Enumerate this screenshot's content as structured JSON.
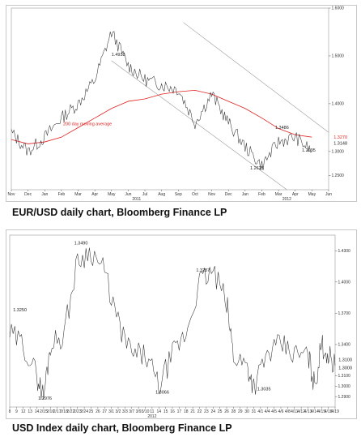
{
  "chart_data": [
    {
      "type": "line",
      "caption": "EUR/USD daily chart, Bloomberg Finance LP",
      "x_ticks": [
        "Nov",
        "Dec",
        "Jan",
        "Feb",
        "Mar",
        "Apr",
        "May",
        "Jun",
        "Jul",
        "Aug",
        "Sep",
        "Oct",
        "Nov",
        "Dec",
        "Jan",
        "Feb",
        "Mar",
        "Apr",
        "May",
        "Jun"
      ],
      "year_labels": [
        "2011",
        "2012"
      ],
      "y_ticks": [
        1.6,
        1.5,
        1.4,
        1.3,
        1.25
      ],
      "y_tick_labels": [
        "1.6000",
        "1.5000",
        "1.4000",
        "1.3000",
        "1.2500"
      ],
      "ylim": [
        1.22,
        1.6
      ],
      "series": [
        {
          "name": "200 day moving average",
          "color": "#e02020",
          "x": [
            0,
            1,
            2,
            3,
            4,
            5,
            6,
            7,
            8,
            9,
            10,
            11,
            12,
            13,
            14,
            15,
            16,
            17,
            18
          ],
          "values": [
            1.325,
            1.316,
            1.32,
            1.33,
            1.35,
            1.37,
            1.39,
            1.405,
            1.41,
            1.42,
            1.425,
            1.428,
            1.42,
            1.405,
            1.39,
            1.37,
            1.348,
            1.335,
            1.33
          ]
        },
        {
          "name": "",
          "color": "#333333",
          "x": [
            0,
            1,
            2,
            3,
            4,
            5,
            6,
            7,
            8,
            9,
            10,
            11,
            12,
            13,
            14,
            15,
            16,
            17,
            18
          ],
          "values": [
            1.34,
            1.3,
            1.33,
            1.37,
            1.4,
            1.45,
            1.55,
            1.48,
            1.45,
            1.44,
            1.43,
            1.36,
            1.42,
            1.36,
            1.31,
            1.27,
            1.32,
            1.33,
            1.3
          ]
        }
      ],
      "annotations": [
        {
          "text": "1.4938",
          "x": 6,
          "y": 1.5
        },
        {
          "text": "1.3486",
          "x": 15.8,
          "y": 1.347
        },
        {
          "text": "1.2625",
          "x": 14.3,
          "y": 1.262
        },
        {
          "text": "1.2995",
          "x": 17.4,
          "y": 1.3
        },
        {
          "text": "200 day moving average",
          "x": 3.1,
          "y": 1.355
        },
        {
          "text": "1.3270",
          "x": 19.3,
          "y": 1.327
        },
        {
          "text": "1.3148",
          "x": 19.3,
          "y": 1.314
        }
      ]
    },
    {
      "type": "line",
      "caption": "USD Index daily chart, Bloomberg Finance LP",
      "x_ticks": [
        "8",
        "9",
        "12",
        "13",
        "14",
        "2/15",
        "2/16",
        "2/17",
        "2/18",
        "2/22",
        "2/23",
        "2/24",
        "25",
        "26",
        "27",
        "3/1",
        "3/2",
        "3/3",
        "3/7",
        "3/9",
        "3/10",
        "11",
        "14",
        "15",
        "16",
        "17",
        "18",
        "21",
        "22",
        "23",
        "24",
        "25",
        "26",
        "28",
        "29",
        "30",
        "31",
        "4/1",
        "4/4",
        "4/5",
        "4/6",
        "4/8",
        "4/11",
        "4/12",
        "4/13",
        "4/14",
        "4/15",
        "4/18",
        "4/19"
      ],
      "year_labels": [
        "2012"
      ],
      "y_ticks": [
        1.43,
        1.4,
        1.37,
        1.34,
        1.31,
        1.3,
        1.29
      ],
      "y_tick_labels": [
        "1.4300",
        "1.4000",
        "1.3700",
        "1.3400",
        "1.3100",
        "1.3000",
        "1.2900"
      ],
      "ylim": [
        1.28,
        1.445
      ],
      "series": [
        {
          "name": "",
          "color": "#333333",
          "x": [
            0,
            2,
            4,
            5,
            6,
            8,
            10,
            12,
            14,
            16,
            18,
            20,
            22,
            24,
            26,
            28,
            30,
            32,
            33,
            35,
            36,
            38,
            40,
            42,
            44,
            45,
            46,
            47,
            48
          ],
          "values": [
            1.35,
            1.34,
            1.31,
            1.29,
            1.34,
            1.35,
            1.42,
            1.43,
            1.41,
            1.36,
            1.33,
            1.33,
            1.3,
            1.33,
            1.35,
            1.4,
            1.41,
            1.38,
            1.33,
            1.32,
            1.3,
            1.33,
            1.34,
            1.33,
            1.33,
            1.3,
            1.34,
            1.33,
            1.32
          ]
        }
      ],
      "annotations": [
        {
          "text": "1.3490",
          "x": 9.5,
          "y": 1.436
        },
        {
          "text": "1.2976",
          "x": 4.2,
          "y": 1.287
        },
        {
          "text": "1.3066",
          "x": 21.5,
          "y": 1.293
        },
        {
          "text": "1.3287",
          "x": 27.5,
          "y": 1.41
        },
        {
          "text": "1.3035",
          "x": 36.5,
          "y": 1.296
        },
        {
          "text": "1.3250",
          "x": 0.5,
          "y": 1.372
        },
        {
          "text": "1.3100",
          "x": 48.5,
          "y": 1.324
        },
        {
          "text": "1.3000",
          "x": 48.5,
          "y": 1.316
        }
      ]
    }
  ]
}
